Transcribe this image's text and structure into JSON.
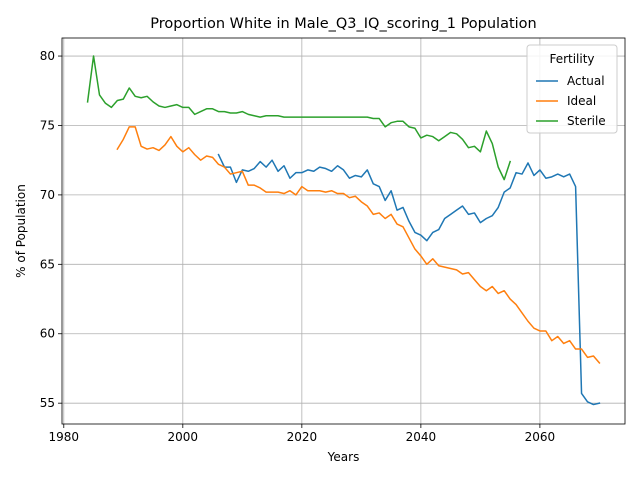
{
  "chart_data": {
    "type": "line",
    "title": "Proportion White in Male_Q3_IQ_scoring_1 Population",
    "xlabel": "Years",
    "ylabel": "% of Population",
    "xlim": [
      1979.7,
      2074.3
    ],
    "ylim": [
      53.5,
      81.3
    ],
    "xticks": [
      1980,
      2000,
      2020,
      2040,
      2060
    ],
    "yticks": [
      55,
      60,
      65,
      70,
      75,
      80
    ],
    "grid": true,
    "legend": {
      "title": "Fertility",
      "placement": "top-right"
    },
    "series": [
      {
        "name": "Actual",
        "color": "#1f77b4",
        "x": [
          2006,
          2007,
          2008,
          2009,
          2010,
          2011,
          2012,
          2013,
          2014,
          2015,
          2016,
          2017,
          2018,
          2019,
          2020,
          2021,
          2022,
          2023,
          2024,
          2025,
          2026,
          2027,
          2028,
          2029,
          2030,
          2031,
          2032,
          2033,
          2034,
          2035,
          2036,
          2037,
          2038,
          2039,
          2040,
          2041,
          2042,
          2043,
          2044,
          2045,
          2046,
          2047,
          2048,
          2049,
          2050,
          2051,
          2052,
          2053,
          2054,
          2055,
          2056,
          2057,
          2058,
          2059,
          2060,
          2061,
          2062,
          2063,
          2064,
          2065,
          2066,
          2067,
          2068,
          2069,
          2070
        ],
        "values": [
          72.9,
          72.0,
          72.0,
          70.9,
          71.8,
          71.7,
          71.9,
          72.4,
          72.0,
          72.5,
          71.7,
          72.1,
          71.2,
          71.6,
          71.6,
          71.8,
          71.7,
          72.0,
          71.9,
          71.7,
          72.1,
          71.8,
          71.2,
          71.4,
          71.3,
          71.8,
          70.8,
          70.6,
          69.6,
          70.3,
          68.9,
          69.1,
          68.1,
          67.3,
          67.1,
          66.7,
          67.3,
          67.5,
          68.3,
          68.6,
          68.9,
          69.2,
          68.6,
          68.7,
          68.0,
          68.3,
          68.5,
          69.1,
          70.2,
          70.5,
          71.6,
          71.5,
          72.3,
          71.4,
          71.8,
          71.2,
          71.3,
          71.5,
          71.3,
          71.5,
          70.6,
          55.7,
          55.1,
          54.9,
          55.0
        ]
      },
      {
        "name": "Ideal",
        "color": "#ff7f0e",
        "x": [
          1989,
          1990,
          1991,
          1992,
          1993,
          1994,
          1995,
          1996,
          1997,
          1998,
          1999,
          2000,
          2001,
          2002,
          2003,
          2004,
          2005,
          2006,
          2007,
          2008,
          2009,
          2010,
          2011,
          2012,
          2013,
          2014,
          2015,
          2016,
          2017,
          2018,
          2019,
          2020,
          2021,
          2022,
          2023,
          2024,
          2025,
          2026,
          2027,
          2028,
          2029,
          2030,
          2031,
          2032,
          2033,
          2034,
          2035,
          2036,
          2037,
          2038,
          2039,
          2040,
          2041,
          2042,
          2043,
          2044,
          2045,
          2046,
          2047,
          2048,
          2049,
          2050,
          2051,
          2052,
          2053,
          2054,
          2055,
          2056,
          2057,
          2058,
          2059,
          2060,
          2061,
          2062,
          2063,
          2064,
          2065,
          2066,
          2067,
          2068,
          2069,
          2070
        ],
        "values": [
          73.3,
          74.0,
          74.9,
          74.9,
          73.5,
          73.3,
          73.4,
          73.2,
          73.6,
          74.2,
          73.5,
          73.1,
          73.4,
          72.9,
          72.5,
          72.8,
          72.7,
          72.2,
          72.0,
          71.5,
          71.6,
          71.7,
          70.7,
          70.7,
          70.5,
          70.2,
          70.2,
          70.2,
          70.1,
          70.3,
          70.0,
          70.6,
          70.3,
          70.3,
          70.3,
          70.2,
          70.3,
          70.1,
          70.1,
          69.8,
          69.9,
          69.5,
          69.2,
          68.6,
          68.7,
          68.3,
          68.6,
          67.9,
          67.7,
          66.9,
          66.1,
          65.6,
          65.0,
          65.4,
          64.9,
          64.8,
          64.7,
          64.6,
          64.3,
          64.4,
          63.9,
          63.4,
          63.1,
          63.4,
          62.9,
          63.1,
          62.5,
          62.1,
          61.5,
          60.9,
          60.4,
          60.2,
          60.2,
          59.5,
          59.8,
          59.3,
          59.5,
          58.9,
          58.9,
          58.3,
          58.4,
          57.9
        ]
      },
      {
        "name": "Sterile",
        "color": "#2ca02c",
        "x": [
          1984,
          1985,
          1986,
          1987,
          1988,
          1989,
          1990,
          1991,
          1992,
          1993,
          1994,
          1995,
          1996,
          1997,
          1998,
          1999,
          2000,
          2001,
          2002,
          2003,
          2004,
          2005,
          2006,
          2007,
          2008,
          2009,
          2010,
          2011,
          2012,
          2013,
          2014,
          2015,
          2016,
          2017,
          2018,
          2019,
          2020,
          2021,
          2022,
          2023,
          2024,
          2025,
          2026,
          2027,
          2028,
          2029,
          2030,
          2031,
          2032,
          2033,
          2034,
          2035,
          2036,
          2037,
          2038,
          2039,
          2040,
          2041,
          2042,
          2043,
          2044,
          2045,
          2046,
          2047,
          2048,
          2049,
          2050,
          2051,
          2052,
          2053,
          2054,
          2055
        ],
        "values": [
          76.7,
          80.0,
          77.2,
          76.6,
          76.3,
          76.8,
          76.9,
          77.7,
          77.1,
          77.0,
          77.1,
          76.7,
          76.4,
          76.3,
          76.4,
          76.5,
          76.3,
          76.3,
          75.8,
          76.0,
          76.2,
          76.2,
          76.0,
          76.0,
          75.9,
          75.9,
          76.0,
          75.8,
          75.7,
          75.6,
          75.7,
          75.7,
          75.7,
          75.6,
          75.6,
          75.6,
          75.6,
          75.6,
          75.6,
          75.6,
          75.6,
          75.6,
          75.6,
          75.6,
          75.6,
          75.6,
          75.6,
          75.6,
          75.5,
          75.5,
          74.9,
          75.2,
          75.3,
          75.3,
          74.9,
          74.8,
          74.1,
          74.3,
          74.2,
          73.9,
          74.2,
          74.5,
          74.4,
          74.0,
          73.4,
          73.5,
          73.1,
          74.6,
          73.7,
          72.0,
          71.1,
          72.4
        ]
      }
    ]
  }
}
